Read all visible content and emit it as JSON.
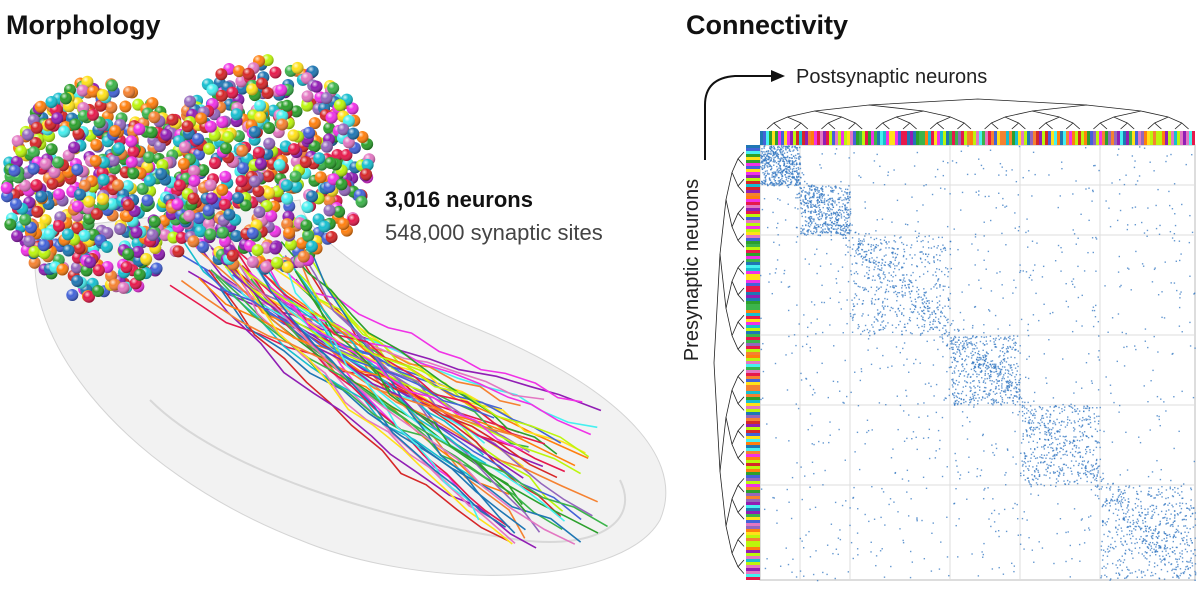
{
  "morphology": {
    "title": "Morphology",
    "count_label": "3,016 neurons",
    "sites_label": "548,000 synaptic sites"
  },
  "connectivity": {
    "title": "Connectivity",
    "post_label": "Postsynaptic neurons",
    "pre_label": "Presynaptic neurons"
  }
}
